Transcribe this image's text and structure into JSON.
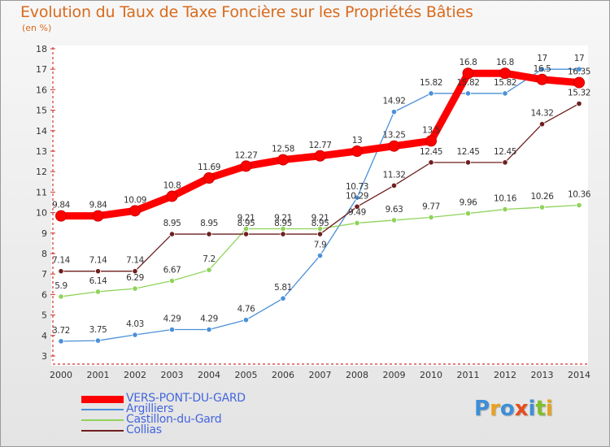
{
  "title": "Evolution du Taux de Taxe Foncière sur les Propriétés Bâties",
  "subtitle": "(en %)",
  "logo": {
    "text": "Proxiti",
    "letters": [
      "P",
      "r",
      "o",
      "x",
      "i",
      "t",
      "i"
    ],
    "colors": [
      "#3d8fd6",
      "#e8a21d",
      "#3d8fd6",
      "#e84c1d",
      "#3d8fd6",
      "#7fbf2a",
      "#e8a21d"
    ]
  },
  "chart_data": {
    "type": "line",
    "title": "Evolution du Taux de Taxe Foncière sur les Propriétés Bâties",
    "ylabel": "(en %)",
    "xlabel": "",
    "x": [
      "2000",
      "2001",
      "2002",
      "2003",
      "2004",
      "2005",
      "2006",
      "2007",
      "2008",
      "2009",
      "2010",
      "2011",
      "2012",
      "2013",
      "2014"
    ],
    "ylim": [
      3,
      18
    ],
    "yticks": [
      "3",
      "4",
      "5",
      "6",
      "7",
      "8",
      "9",
      "10",
      "11",
      "12",
      "13",
      "14",
      "15",
      "16",
      "17",
      "18"
    ],
    "grid": false,
    "legend_position": "bottom-left",
    "series": [
      {
        "name": "VERS-PONT-DU-GARD",
        "color": "#ff0000",
        "emphasis": true,
        "values": [
          9.84,
          9.84,
          10.09,
          10.8,
          11.69,
          12.27,
          12.58,
          12.77,
          13,
          13.25,
          13.5,
          16.8,
          16.8,
          16.5,
          16.35
        ],
        "labels": [
          "9.84",
          "9.84",
          "10.09",
          "10.8",
          "11.69",
          "12.27",
          "12.58",
          "12.77",
          "13",
          "13.25",
          "13.5",
          "16.8",
          "16.8",
          "16.5",
          "16.35"
        ]
      },
      {
        "name": "Argilliers",
        "color": "#4a90d9",
        "values": [
          3.72,
          3.75,
          4.03,
          4.29,
          4.29,
          4.76,
          5.81,
          7.9,
          10.73,
          14.92,
          15.82,
          15.82,
          15.82,
          17,
          17
        ],
        "labels": [
          "3.72",
          "3.75",
          "4.03",
          "4.29",
          "4.29",
          "4.76",
          "5.81",
          "7.9",
          "10.73",
          "14.92",
          "15.82",
          "15.82",
          "15.82",
          "17",
          "17"
        ]
      },
      {
        "name": "Castillon-du-Gard",
        "color": "#8fd35a",
        "values": [
          5.9,
          6.14,
          6.29,
          6.67,
          7.2,
          9.21,
          9.21,
          9.21,
          9.49,
          9.63,
          9.77,
          9.96,
          10.16,
          10.26,
          10.36
        ],
        "labels": [
          "5.9",
          "6.14",
          "6.29",
          "6.67",
          "7.2",
          "9.21",
          "9.21",
          "9.21",
          "9.49",
          "9.63",
          "9.77",
          "9.96",
          "10.16",
          "10.26",
          "10.36"
        ]
      },
      {
        "name": "Collias",
        "color": "#6e1f1f",
        "values": [
          7.14,
          7.14,
          7.14,
          8.95,
          8.95,
          8.95,
          8.95,
          8.95,
          10.29,
          11.32,
          12.45,
          12.45,
          12.45,
          14.32,
          15.32
        ],
        "labels": [
          "7.14",
          "7.14",
          "7.14",
          "8.95",
          "8.95",
          "8.95",
          "8.95",
          "8.95",
          "10.29",
          "11.32",
          "12.45",
          "12.45",
          "12.45",
          "14.32",
          "15.32"
        ]
      }
    ]
  }
}
